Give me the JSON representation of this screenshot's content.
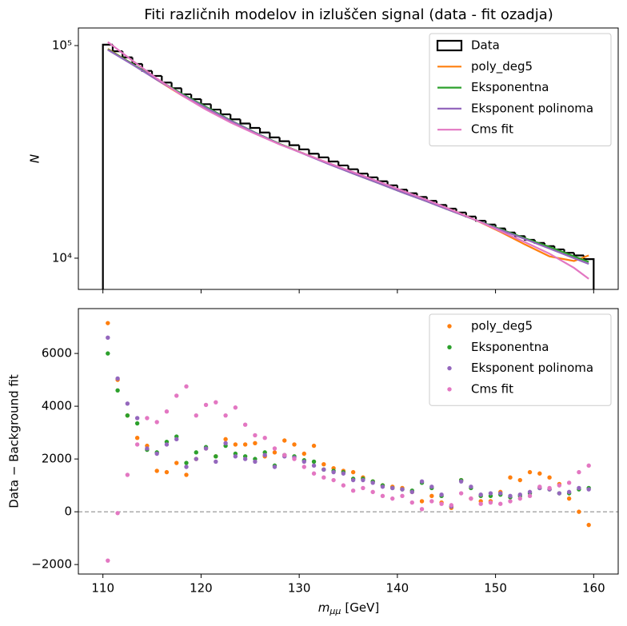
{
  "chart_data": [
    {
      "type": "histogram",
      "title": "Fiti različnih modelov in izluščen signal (data - fit ozadja)",
      "ylabel": "N",
      "log_y": true,
      "xlim": [
        107.5,
        162.5
      ],
      "xticks": [
        110,
        120,
        130,
        140,
        150,
        160
      ],
      "ylim": [
        7130,
        121000
      ],
      "yticks": [
        {
          "value": 10000,
          "label": "10⁴"
        },
        {
          "value": 100000,
          "label": "10⁵"
        }
      ],
      "bins": [
        110,
        111,
        112,
        113,
        114,
        115,
        116,
        117,
        118,
        119,
        120,
        121,
        122,
        123,
        124,
        125,
        126,
        127,
        128,
        129,
        130,
        131,
        132,
        133,
        134,
        135,
        136,
        137,
        138,
        139,
        140,
        141,
        142,
        143,
        144,
        145,
        146,
        147,
        148,
        149,
        150,
        151,
        152,
        153,
        154,
        155,
        156,
        157,
        158,
        159,
        160
      ],
      "histogram": {
        "name": "Data",
        "color": "#000000",
        "values": [
          101000,
          94000,
          88000,
          82000,
          76000,
          72000,
          67000,
          63000,
          59000,
          56000,
          53000,
          50000,
          47500,
          45000,
          43000,
          41000,
          39000,
          37000,
          35500,
          34000,
          32500,
          31000,
          29800,
          28500,
          27300,
          26200,
          25000,
          24000,
          23000,
          22000,
          21000,
          20200,
          19400,
          18600,
          17800,
          17100,
          16400,
          15700,
          15000,
          14400,
          13800,
          13200,
          12700,
          12200,
          11800,
          11400,
          11000,
          10600,
          10300,
          9900
        ]
      },
      "lines": {
        "x": [
          110.5,
          113,
          115.5,
          118,
          120.5,
          123,
          125.5,
          128,
          130.5,
          133,
          135.5,
          138,
          140.5,
          143,
          145.5,
          148,
          150.5,
          153,
          155.5,
          158,
          159.5
        ],
        "series": [
          {
            "name": "poly_deg5",
            "color": "#ff7f0e",
            "values": [
              96500,
              82000,
              69000,
              58500,
              50500,
              44000,
              38800,
              34500,
              31000,
              28000,
              25200,
              22800,
              20600,
              18700,
              16900,
              15100,
              13300,
              11600,
              10200,
              9700,
              10300
            ]
          },
          {
            "name": "Eksponentna",
            "color": "#2ca02c",
            "values": [
              96000,
              82000,
              69500,
              59500,
              51500,
              44500,
              39000,
              34500,
              31000,
              27800,
              25000,
              22600,
              20400,
              18500,
              16700,
              15100,
              13700,
              12400,
              11300,
              10200,
              9600
            ]
          },
          {
            "name": "Eksponent polinoma",
            "color": "#9467bd",
            "values": [
              95500,
              81500,
              69000,
              59000,
              51000,
              44300,
              38900,
              34400,
              30900,
              27700,
              25000,
              22600,
              20400,
              18500,
              16700,
              15100,
              13600,
              12300,
              11100,
              10000,
              9400
            ]
          },
          {
            "name": "Cms fit",
            "color": "#e377c2",
            "values": [
              104000,
              85000,
              70000,
              58500,
              50000,
              43500,
              38500,
              34300,
              31000,
              28000,
              25400,
              23000,
              20800,
              18800,
              16900,
              15100,
              13400,
              11900,
              10500,
              9000,
              8000
            ]
          }
        ]
      }
    },
    {
      "type": "scatter",
      "ylabel": "Data − Background fit",
      "xlabel_var": "m",
      "xlabel_sub": "μμ",
      "xlabel_unit": "[GeV]",
      "xlim": [
        107.5,
        162.5
      ],
      "xticks": [
        110,
        120,
        130,
        140,
        150,
        160
      ],
      "ylim": [
        -2360,
        7700
      ],
      "yticks": [
        {
          "value": -2000,
          "label": "−2000"
        },
        0,
        2000,
        4000,
        6000
      ],
      "hline": 0,
      "x": [
        110.5,
        111.5,
        112.5,
        113.5,
        114.5,
        115.5,
        116.5,
        117.5,
        118.5,
        119.5,
        120.5,
        121.5,
        122.5,
        123.5,
        124.5,
        125.5,
        126.5,
        127.5,
        128.5,
        129.5,
        130.5,
        131.5,
        132.5,
        133.5,
        134.5,
        135.5,
        136.5,
        137.5,
        138.5,
        139.5,
        140.5,
        141.5,
        142.5,
        143.5,
        144.5,
        145.5,
        146.5,
        147.5,
        148.5,
        149.5,
        150.5,
        151.5,
        152.5,
        153.5,
        154.5,
        155.5,
        156.5,
        157.5,
        158.5,
        159.5
      ],
      "series": [
        {
          "name": "poly_deg5",
          "color": "#ff7f0e",
          "values": [
            7150,
            5000,
            3650,
            2800,
            2500,
            1550,
            1500,
            1850,
            1400,
            2000,
            2400,
            2100,
            2750,
            2550,
            2550,
            2600,
            2100,
            2250,
            2700,
            2550,
            2200,
            2500,
            1800,
            1650,
            1550,
            1500,
            1300,
            1150,
            1000,
            950,
            900,
            750,
            400,
            600,
            350,
            150,
            1200,
            500,
            400,
            400,
            750,
            1300,
            1200,
            1500,
            1450,
            1300,
            1050,
            500,
            0,
            -500
          ]
        },
        {
          "name": "Eksponentna",
          "color": "#2ca02c",
          "values": [
            6000,
            4600,
            3650,
            3350,
            2350,
            2250,
            2650,
            2850,
            1850,
            2250,
            2450,
            2100,
            2500,
            2200,
            2100,
            2000,
            2250,
            1750,
            2150,
            2100,
            1950,
            1900,
            1600,
            1550,
            1500,
            1250,
            1250,
            1150,
            1000,
            900,
            850,
            800,
            1100,
            900,
            600,
            200,
            1200,
            900,
            600,
            600,
            650,
            550,
            600,
            700,
            900,
            850,
            700,
            700,
            850,
            900
          ]
        },
        {
          "name": "Eksponent polinoma",
          "color": "#9467bd",
          "values": [
            6600,
            5050,
            4100,
            3550,
            2400,
            2200,
            2550,
            2750,
            1700,
            2000,
            2400,
            1900,
            2600,
            2100,
            2000,
            1900,
            2150,
            1700,
            2100,
            2050,
            1900,
            1750,
            1600,
            1500,
            1450,
            1200,
            1200,
            1100,
            950,
            900,
            850,
            750,
            1150,
            950,
            650,
            200,
            1150,
            950,
            650,
            700,
            700,
            600,
            650,
            750,
            900,
            850,
            700,
            750,
            900,
            850
          ]
        },
        {
          "name": "Cms fit",
          "color": "#e377c2",
          "values": [
            -1850,
            -50,
            1400,
            2550,
            3550,
            3400,
            3800,
            4400,
            4750,
            3650,
            4050,
            4150,
            3650,
            3950,
            3300,
            2900,
            2800,
            2400,
            2150,
            2000,
            1700,
            1450,
            1300,
            1200,
            1000,
            800,
            900,
            750,
            600,
            500,
            600,
            350,
            100,
            400,
            300,
            250,
            700,
            500,
            300,
            350,
            300,
            400,
            500,
            600,
            950,
            900,
            1000,
            1100,
            1500,
            1750
          ]
        }
      ]
    }
  ]
}
